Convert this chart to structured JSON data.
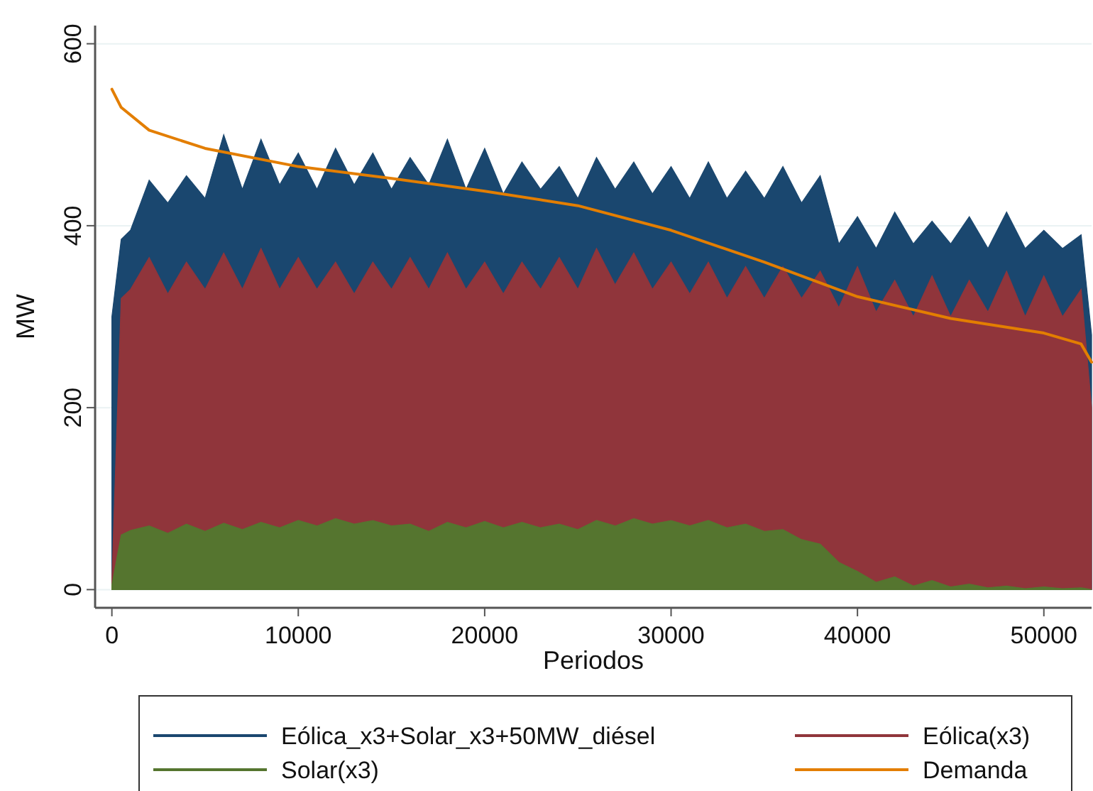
{
  "chart_data": {
    "type": "area",
    "xlabel": "Periodos",
    "ylabel": "MW",
    "xlim": [
      -900,
      52560
    ],
    "ylim": [
      -20,
      620
    ],
    "xticks": [
      0,
      10000,
      20000,
      30000,
      40000,
      50000
    ],
    "yticks": [
      0,
      200,
      400,
      600
    ],
    "grid": "y",
    "legend": "bottom",
    "x": [
      0,
      500,
      1000,
      2000,
      3000,
      4000,
      5000,
      6000,
      7000,
      8000,
      9000,
      10000,
      11000,
      12000,
      13000,
      14000,
      15000,
      16000,
      17000,
      18000,
      19000,
      20000,
      21000,
      22000,
      23000,
      24000,
      25000,
      26000,
      27000,
      28000,
      29000,
      30000,
      31000,
      32000,
      33000,
      34000,
      35000,
      36000,
      37000,
      38000,
      39000,
      40000,
      41000,
      42000,
      43000,
      44000,
      45000,
      46000,
      47000,
      48000,
      49000,
      50000,
      51000,
      52000,
      52560
    ],
    "series": [
      {
        "name": "Eólica_x3+Solar_x3+50MW_diésel",
        "color": "#1a476f",
        "values": [
          300,
          385,
          395,
          450,
          425,
          455,
          430,
          500,
          440,
          495,
          445,
          480,
          440,
          485,
          445,
          480,
          440,
          475,
          445,
          495,
          440,
          485,
          435,
          470,
          440,
          465,
          430,
          475,
          440,
          470,
          435,
          465,
          430,
          470,
          430,
          460,
          430,
          465,
          425,
          455,
          380,
          410,
          375,
          415,
          380,
          405,
          380,
          410,
          375,
          415,
          375,
          395,
          375,
          390,
          280
        ]
      },
      {
        "name": "Eólica(x3)",
        "color": "#90353b",
        "values": [
          10,
          320,
          330,
          365,
          325,
          360,
          330,
          370,
          330,
          375,
          330,
          365,
          330,
          360,
          325,
          360,
          330,
          365,
          330,
          370,
          330,
          360,
          325,
          360,
          330,
          365,
          330,
          375,
          335,
          370,
          330,
          360,
          325,
          360,
          320,
          355,
          320,
          355,
          320,
          350,
          310,
          355,
          305,
          340,
          300,
          345,
          300,
          340,
          305,
          350,
          300,
          345,
          300,
          330,
          200
        ]
      },
      {
        "name": "Solar(x3)",
        "color": "#55752f",
        "values": [
          5,
          60,
          65,
          70,
          62,
          72,
          64,
          73,
          66,
          74,
          68,
          76,
          70,
          78,
          72,
          76,
          70,
          72,
          64,
          74,
          68,
          75,
          68,
          74,
          68,
          72,
          66,
          76,
          70,
          78,
          72,
          76,
          70,
          76,
          68,
          72,
          64,
          66,
          55,
          50,
          30,
          20,
          8,
          14,
          4,
          10,
          3,
          6,
          2,
          4,
          1,
          3,
          1,
          2,
          0
        ]
      },
      {
        "name": "Demanda",
        "type": "line",
        "color": "#e37e00",
        "x": [
          0,
          500,
          2000,
          5000,
          10000,
          15000,
          20000,
          25000,
          30000,
          35000,
          40000,
          45000,
          50000,
          52000,
          52560
        ],
        "values": [
          550,
          530,
          505,
          485,
          465,
          452,
          438,
          422,
          395,
          360,
          322,
          298,
          282,
          270,
          250
        ]
      }
    ]
  }
}
